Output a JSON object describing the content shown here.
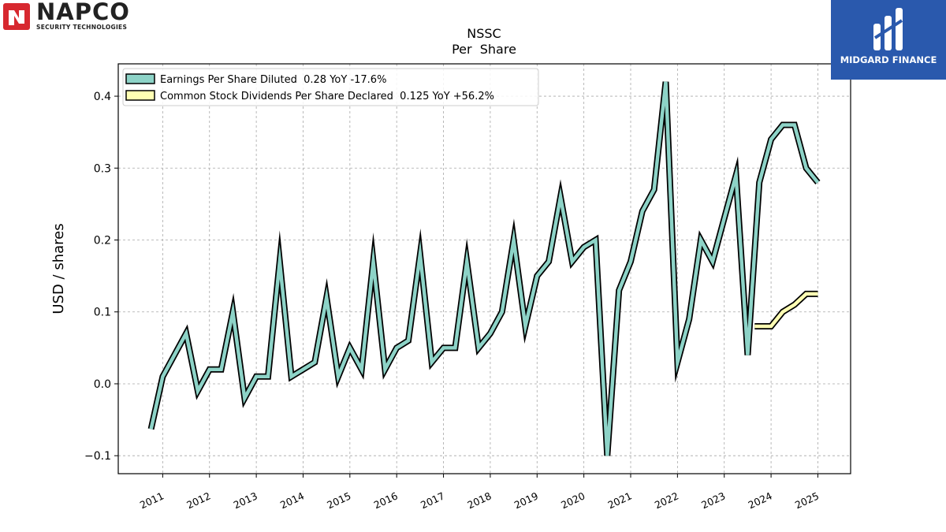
{
  "chart_data": {
    "type": "line",
    "title": "NSSC",
    "subtitle": "Per  Share",
    "ylabel": "USD / shares",
    "xlabel": "",
    "ylim": [
      -0.125,
      0.445
    ],
    "xlim": [
      2010.05,
      2025.7
    ],
    "yticks": [
      -0.1,
      0.0,
      0.1,
      0.2,
      0.3,
      0.4
    ],
    "ytick_labels": [
      "−0.1",
      "0.0",
      "0.1",
      "0.2",
      "0.3",
      "0.4"
    ],
    "xticks": [
      2011,
      2012,
      2013,
      2014,
      2015,
      2016,
      2017,
      2018,
      2019,
      2020,
      2021,
      2022,
      2023,
      2024,
      2025
    ],
    "xtick_labels": [
      "2011",
      "2012",
      "2013",
      "2014",
      "2015",
      "2016",
      "2017",
      "2018",
      "2019",
      "2020",
      "2021",
      "2022",
      "2023",
      "2024",
      "2025"
    ],
    "grid": true,
    "legend_position": "top-left",
    "series": [
      {
        "name": "Earnings Per Share Diluted",
        "legend_label": "Earnings Per Share Diluted  0.28 YoY -17.6%",
        "color": "#8dd3c7",
        "x": [
          2010.75,
          2011.0,
          2011.25,
          2011.5,
          2011.75,
          2012.0,
          2012.25,
          2012.5,
          2012.75,
          2013.0,
          2013.25,
          2013.5,
          2013.75,
          2014.0,
          2014.25,
          2014.5,
          2014.75,
          2015.0,
          2015.25,
          2015.5,
          2015.75,
          2016.0,
          2016.25,
          2016.5,
          2016.75,
          2017.0,
          2017.25,
          2017.5,
          2017.75,
          2018.0,
          2018.25,
          2018.5,
          2018.75,
          2019.0,
          2019.25,
          2019.5,
          2019.75,
          2020.0,
          2020.25,
          2020.5,
          2020.75,
          2021.0,
          2021.25,
          2021.5,
          2021.75,
          2022.0,
          2022.25,
          2022.5,
          2022.75,
          2023.0,
          2023.25,
          2023.5,
          2023.75,
          2024.0,
          2024.25,
          2024.5,
          2024.75,
          2025.0
        ],
        "values": [
          -0.063,
          0.01,
          0.04,
          0.07,
          -0.01,
          0.02,
          0.02,
          0.1,
          -0.02,
          0.01,
          0.01,
          0.17,
          0.01,
          0.02,
          0.03,
          0.12,
          0.01,
          0.05,
          0.02,
          0.17,
          0.02,
          0.05,
          0.06,
          0.18,
          0.03,
          0.05,
          0.05,
          0.17,
          0.05,
          0.07,
          0.1,
          0.2,
          0.08,
          0.15,
          0.17,
          0.26,
          0.17,
          0.19,
          0.2,
          -0.1,
          0.13,
          0.17,
          0.24,
          0.27,
          0.42,
          0.03,
          0.09,
          0.2,
          0.17,
          0.23,
          0.29,
          0.04,
          0.28,
          0.34,
          0.36,
          0.36,
          0.3,
          0.28
        ]
      },
      {
        "name": "Common Stock Dividends Per Share Declared",
        "legend_label": "Common Stock Dividends Per Share Declared  0.125 YoY +56.2%",
        "color": "#ffffb3",
        "x": [
          2023.65,
          2023.75,
          2024.0,
          2024.25,
          2024.5,
          2024.75,
          2025.0
        ],
        "values": [
          0.08,
          0.08,
          0.08,
          0.1,
          0.11,
          0.125,
          0.125
        ]
      }
    ]
  },
  "branding": {
    "napco_name": "NAPCO",
    "napco_tagline": "SECURITY TECHNOLOGIES",
    "midgard_name": "MIDGARD FINANCE"
  }
}
